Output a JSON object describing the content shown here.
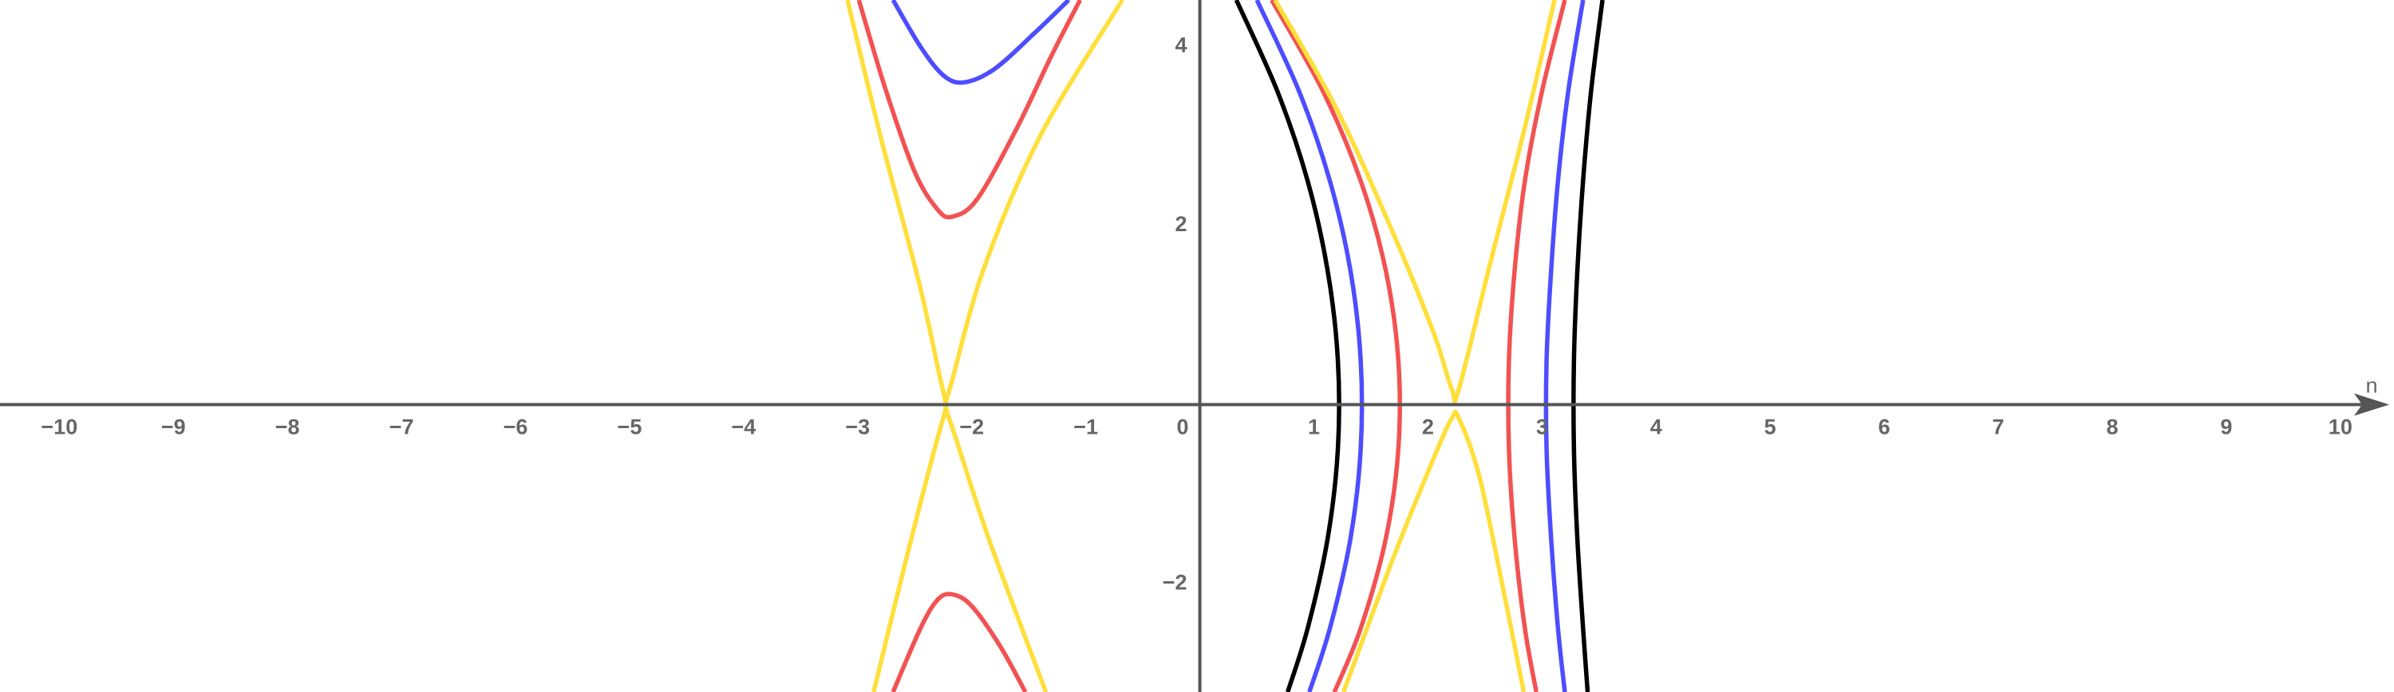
{
  "chart_data": {
    "type": "line",
    "x_label": "n",
    "xlim": [
      -10.52,
      10.47
    ],
    "ylim": [
      -3.21,
      4.52
    ],
    "xticks": [
      {
        "value": -10,
        "label": "−10"
      },
      {
        "value": -9,
        "label": "−9"
      },
      {
        "value": -8,
        "label": "−8"
      },
      {
        "value": -7,
        "label": "−7"
      },
      {
        "value": -6,
        "label": "−6"
      },
      {
        "value": -5,
        "label": "−5"
      },
      {
        "value": -4,
        "label": "−4"
      },
      {
        "value": -3,
        "label": "−3"
      },
      {
        "value": -2,
        "label": "−2"
      },
      {
        "value": -1,
        "label": "−1"
      },
      0,
      1,
      2,
      3,
      4,
      5,
      6,
      7,
      8,
      9,
      10
    ],
    "yticks": [
      {
        "value": -2,
        "label": "−2"
      },
      2,
      4
    ],
    "grid": true,
    "series": [
      {
        "color": "#000000",
        "x": [
          0.32,
          0.68,
          0.945,
          1.12,
          1.21,
          1.21,
          1.12,
          0.945,
          0.77
        ],
        "values": [
          4.52,
          3.5,
          2.5,
          1.5,
          0.5,
          -0.5,
          -1.5,
          -2.5,
          -3.21
        ]
      },
      {
        "color": "#4d4dff",
        "x": [
          0.5,
          0.87,
          1.14,
          1.32,
          1.41,
          1.41,
          1.32,
          1.14,
          0.96
        ],
        "values": [
          4.52,
          3.5,
          2.5,
          1.5,
          0.5,
          -0.5,
          -1.5,
          -2.5,
          -3.21
        ]
      },
      {
        "color": "#f25252",
        "x": [
          0.63,
          1.08,
          1.41,
          1.63,
          1.74,
          1.74,
          1.63,
          1.41,
          1.18
        ],
        "values": [
          4.52,
          3.5,
          2.5,
          1.5,
          0.5,
          -0.5,
          -1.5,
          -2.5,
          -3.21
        ]
      },
      {
        "color": "#000000",
        "x": [
          3.53,
          3.43,
          3.36,
          3.31,
          3.28,
          3.28,
          3.31,
          3.36,
          3.4
        ],
        "values": [
          4.52,
          3.5,
          2.5,
          1.5,
          0.5,
          -0.5,
          -1.5,
          -2.5,
          -3.21
        ]
      },
      {
        "color": "#4d4dff",
        "x": [
          3.36,
          3.23,
          3.14,
          3.08,
          3.04,
          3.04,
          3.08,
          3.14,
          3.2
        ],
        "values": [
          4.52,
          3.5,
          2.5,
          1.5,
          0.5,
          -0.5,
          -1.5,
          -2.5,
          -3.21
        ]
      },
      {
        "color": "#f25252",
        "x": [
          3.2,
          3.0,
          2.85,
          2.76,
          2.71,
          2.71,
          2.76,
          2.85,
          2.95
        ],
        "values": [
          4.52,
          3.5,
          2.5,
          1.5,
          0.5,
          -0.5,
          -1.5,
          -2.5,
          -3.21
        ]
      },
      {
        "color": "#ffdf3a",
        "x": [
          0.66,
          1.2,
          1.7,
          2.05,
          2.21,
          2.27,
          2.55,
          2.85,
          3.11
        ],
        "values": [
          4.52,
          3.3,
          1.9,
          0.8,
          0.17,
          0.17,
          1.6,
          3.1,
          4.52
        ]
      },
      {
        "color": "#ffdf3a",
        "x": [
          1.26,
          1.7,
          2.05,
          2.21,
          2.27,
          2.45,
          2.65,
          2.84
        ],
        "values": [
          -3.21,
          -1.7,
          -0.6,
          -0.15,
          -0.15,
          -0.8,
          -2.0,
          -3.21
        ]
      },
      {
        "color": "#ffdf3a",
        "x": [
          -3.09,
          -2.8,
          -2.45,
          -2.25,
          -2.2,
          -1.9,
          -1.4,
          -0.68
        ],
        "values": [
          4.52,
          3.0,
          1.3,
          0.15,
          0.15,
          1.5,
          3.0,
          4.52
        ]
      },
      {
        "color": "#ffdf3a",
        "x": [
          -2.86,
          -2.55,
          -2.25,
          -2.2,
          -1.85,
          -1.35
        ],
        "values": [
          -3.21,
          -1.6,
          -0.15,
          -0.15,
          -1.5,
          -3.21
        ]
      },
      {
        "color": "#f25252",
        "x": [
          -2.99,
          -2.75,
          -2.5,
          -2.3,
          -2.17,
          -1.95,
          -1.6,
          -1.3,
          -1.05
        ],
        "values": [
          4.52,
          3.5,
          2.6,
          2.18,
          2.1,
          2.3,
          3.1,
          3.9,
          4.52
        ]
      },
      {
        "color": "#f25252",
        "x": [
          -2.69,
          -2.45,
          -2.3,
          -2.17,
          -2.0,
          -1.75,
          -1.53
        ],
        "values": [
          -3.21,
          -2.5,
          -2.18,
          -2.12,
          -2.25,
          -2.7,
          -3.21
        ]
      },
      {
        "color": "#4d4dff",
        "x": [
          -2.69,
          -2.45,
          -2.25,
          -2.07,
          -1.8,
          -1.45,
          -1.15
        ],
        "values": [
          4.52,
          4.0,
          3.68,
          3.6,
          3.75,
          4.15,
          4.52
        ]
      }
    ]
  }
}
